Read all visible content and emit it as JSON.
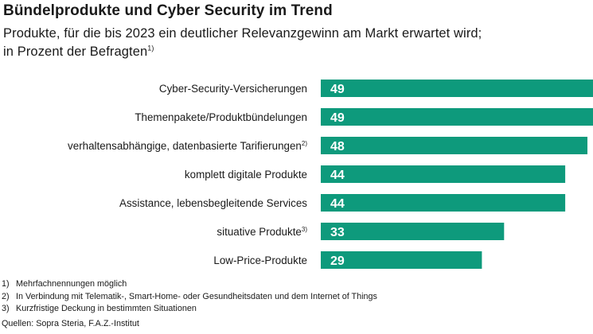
{
  "header": {
    "title": "Bündelprodukte und Cyber Security im Trend",
    "subtitle_line1": "Produkte, für die bis 2023 ein deutlicher Relevanzgewinn am Markt erwartet wird;",
    "subtitle_line2": "in Prozent der Befragten",
    "subtitle_footnote": "1)"
  },
  "chart_data": {
    "type": "bar",
    "orientation": "horizontal",
    "title": "Bündelprodukte und Cyber Security im Trend",
    "categories": [
      "Cyber-Security-Versicherungen",
      "Themenpakete/Produktbündelungen",
      "verhaltensabhängige, datenbasierte Tarifierungen",
      "komplett digitale Produkte",
      "Assistance, lebensbegleitende Services",
      "situative Produkte",
      "Low-Price-Produkte"
    ],
    "category_footnotes": [
      "",
      "",
      "2)",
      "",
      "",
      "3)",
      ""
    ],
    "values": [
      49,
      49,
      48,
      44,
      44,
      33,
      29
    ],
    "unit": "Prozent der Befragten",
    "xlim": [
      0,
      49
    ],
    "bar_color": "#0e9a7c",
    "value_label_color": "#ffffff"
  },
  "footnotes": [
    {
      "mark": "1)",
      "text": "Mehrfachnennungen möglich"
    },
    {
      "mark": "2)",
      "text": "In Verbindung mit Telematik-, Smart-Home- oder Gesundheitsdaten und dem Internet of Things"
    },
    {
      "mark": "3)",
      "text": "Kurzfristige Deckung in bestimmten Situationen"
    }
  ],
  "source": "Quellen: Sopra Steria, F.A.Z.-Institut"
}
